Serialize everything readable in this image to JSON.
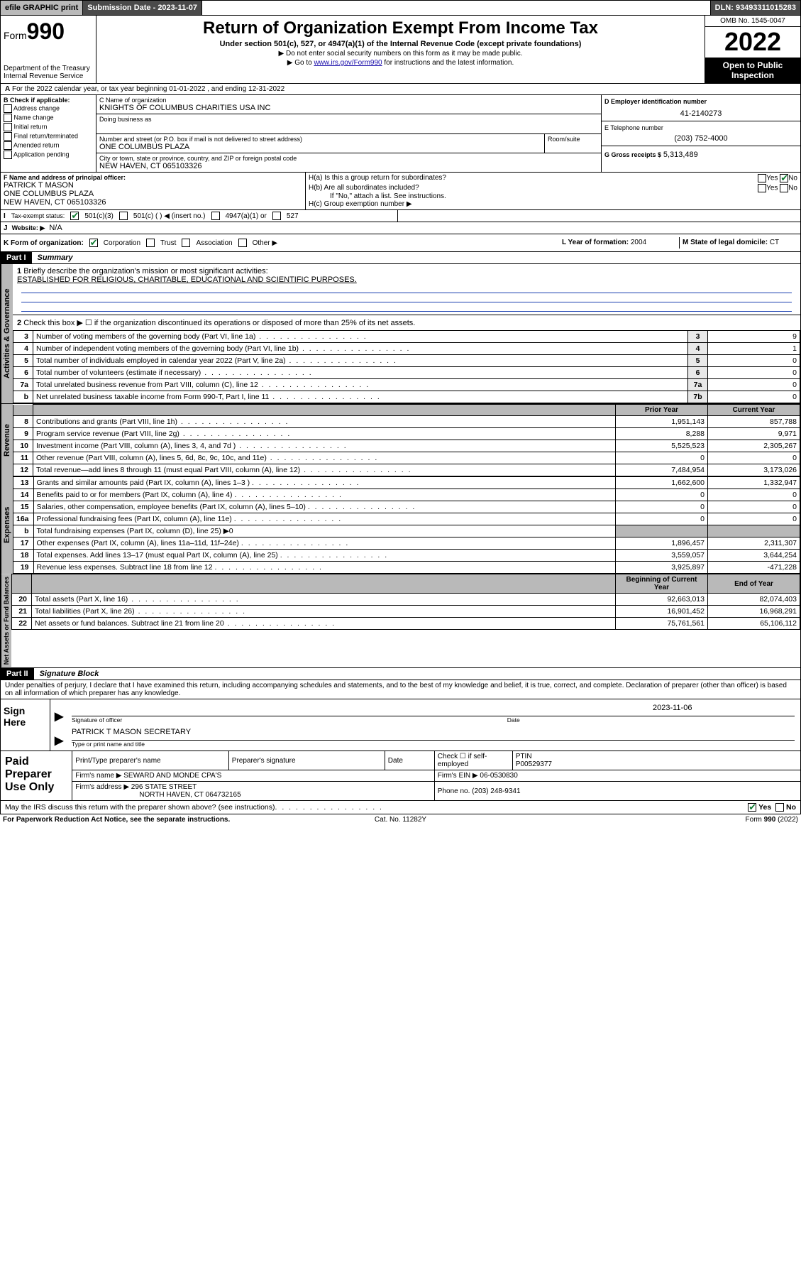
{
  "topbar": {
    "efile": "efile GRAPHIC print",
    "subdate_label": "Submission Date - 2023-11-07",
    "dln": "DLN: 93493311015283"
  },
  "header": {
    "form_prefix": "Form",
    "form_num": "990",
    "dept": "Department of the Treasury",
    "irs": "Internal Revenue Service",
    "title": "Return of Organization Exempt From Income Tax",
    "subtitle": "Under section 501(c), 527, or 4947(a)(1) of the Internal Revenue Code (except private foundations)",
    "note1": "▶ Do not enter social security numbers on this form as it may be made public.",
    "note2_pre": "▶ Go to ",
    "note2_link": "www.irs.gov/Form990",
    "note2_post": " for instructions and the latest information.",
    "omb": "OMB No. 1545-0047",
    "year": "2022",
    "inspect": "Open to Public Inspection"
  },
  "lineA": "For the 2022 calendar year, or tax year beginning 01-01-2022   , and ending 12-31-2022",
  "boxB": {
    "label": "B Check if applicable:",
    "items": [
      "Address change",
      "Name change",
      "Initial return",
      "Final return/terminated",
      "Amended return",
      "Application pending"
    ]
  },
  "boxC": {
    "label": "C Name of organization",
    "name": "KNIGHTS OF COLUMBUS CHARITIES USA INC",
    "dba_label": "Doing business as",
    "addr_label": "Number and street (or P.O. box if mail is not delivered to street address)",
    "room_label": "Room/suite",
    "addr": "ONE COLUMBUS PLAZA",
    "city_label": "City or town, state or province, country, and ZIP or foreign postal code",
    "city": "NEW HAVEN, CT  065103326"
  },
  "boxD": {
    "label": "D Employer identification number",
    "val": "41-2140273"
  },
  "boxE": {
    "label": "E Telephone number",
    "val": "(203) 752-4000"
  },
  "boxG": {
    "label": "G Gross receipts $",
    "val": "5,313,489"
  },
  "boxF": {
    "label": "F Name and address of principal officer:",
    "name": "PATRICK T MASON",
    "addr1": "ONE COLUMBUS PLAZA",
    "addr2": "NEW HAVEN, CT  065103326"
  },
  "boxH": {
    "a": "H(a)  Is this a group return for subordinates?",
    "b": "H(b)  Are all subordinates included?",
    "b_note": "If \"No,\" attach a list. See instructions.",
    "c": "H(c)  Group exemption number ▶",
    "yes": "Yes",
    "no": "No"
  },
  "boxI": {
    "label": "Tax-exempt status:",
    "o1": "501(c)(3)",
    "o2": "501(c) (   ) ◀ (insert no.)",
    "o3": "4947(a)(1) or",
    "o4": "527"
  },
  "boxJ": {
    "label": "Website: ▶",
    "val": "N/A"
  },
  "boxK": {
    "label": "K Form of organization:",
    "o1": "Corporation",
    "o2": "Trust",
    "o3": "Association",
    "o4": "Other ▶"
  },
  "boxL": {
    "label": "L Year of formation:",
    "val": "2004"
  },
  "boxM": {
    "label": "M State of legal domicile:",
    "val": "CT"
  },
  "part1": {
    "label": "Part I",
    "title": "Summary"
  },
  "summary": {
    "q1_label": "Briefly describe the organization's mission or most significant activities:",
    "q1_val": "ESTABLISHED FOR RELIGIOUS, CHARITABLE, EDUCATIONAL AND SCIENTIFIC PURPOSES.",
    "q2": "Check this box ▶ ☐  if the organization discontinued its operations or disposed of more than 25% of its net assets.",
    "lines_gov": [
      {
        "n": "3",
        "t": "Number of voting members of the governing body (Part VI, line 1a)",
        "box": "3",
        "v": "9"
      },
      {
        "n": "4",
        "t": "Number of independent voting members of the governing body (Part VI, line 1b)",
        "box": "4",
        "v": "1"
      },
      {
        "n": "5",
        "t": "Total number of individuals employed in calendar year 2022 (Part V, line 2a)",
        "box": "5",
        "v": "0"
      },
      {
        "n": "6",
        "t": "Total number of volunteers (estimate if necessary)",
        "box": "6",
        "v": "0"
      },
      {
        "n": "7a",
        "t": "Total unrelated business revenue from Part VIII, column (C), line 12",
        "box": "7a",
        "v": "0"
      },
      {
        "n": "b",
        "t": "Net unrelated business taxable income from Form 990-T, Part I, line 11",
        "box": "7b",
        "v": "0"
      }
    ],
    "col_prior": "Prior Year",
    "col_curr": "Current Year",
    "revenue": [
      {
        "n": "8",
        "t": "Contributions and grants (Part VIII, line 1h)",
        "p": "1,951,143",
        "c": "857,788"
      },
      {
        "n": "9",
        "t": "Program service revenue (Part VIII, line 2g)",
        "p": "8,288",
        "c": "9,971"
      },
      {
        "n": "10",
        "t": "Investment income (Part VIII, column (A), lines 3, 4, and 7d )",
        "p": "5,525,523",
        "c": "2,305,267"
      },
      {
        "n": "11",
        "t": "Other revenue (Part VIII, column (A), lines 5, 6d, 8c, 9c, 10c, and 11e)",
        "p": "0",
        "c": "0"
      },
      {
        "n": "12",
        "t": "Total revenue—add lines 8 through 11 (must equal Part VIII, column (A), line 12)",
        "p": "7,484,954",
        "c": "3,173,026"
      }
    ],
    "expenses": [
      {
        "n": "13",
        "t": "Grants and similar amounts paid (Part IX, column (A), lines 1–3 )",
        "p": "1,662,600",
        "c": "1,332,947"
      },
      {
        "n": "14",
        "t": "Benefits paid to or for members (Part IX, column (A), line 4)",
        "p": "0",
        "c": "0"
      },
      {
        "n": "15",
        "t": "Salaries, other compensation, employee benefits (Part IX, column (A), lines 5–10)",
        "p": "0",
        "c": "0"
      },
      {
        "n": "16a",
        "t": "Professional fundraising fees (Part IX, column (A), line 11e)",
        "p": "0",
        "c": "0"
      },
      {
        "n": "b",
        "t": "Total fundraising expenses (Part IX, column (D), line 25) ▶0",
        "p": "",
        "c": "",
        "shade": true
      },
      {
        "n": "17",
        "t": "Other expenses (Part IX, column (A), lines 11a–11d, 11f–24e)",
        "p": "1,896,457",
        "c": "2,311,307"
      },
      {
        "n": "18",
        "t": "Total expenses. Add lines 13–17 (must equal Part IX, column (A), line 25)",
        "p": "3,559,057",
        "c": "3,644,254"
      },
      {
        "n": "19",
        "t": "Revenue less expenses. Subtract line 18 from line 12",
        "p": "3,925,897",
        "c": "-471,228"
      }
    ],
    "col_boy": "Beginning of Current Year",
    "col_eoy": "End of Year",
    "netassets": [
      {
        "n": "20",
        "t": "Total assets (Part X, line 16)",
        "p": "92,663,013",
        "c": "82,074,403"
      },
      {
        "n": "21",
        "t": "Total liabilities (Part X, line 26)",
        "p": "16,901,452",
        "c": "16,968,291"
      },
      {
        "n": "22",
        "t": "Net assets or fund balances. Subtract line 21 from line 20",
        "p": "75,761,561",
        "c": "65,106,112"
      }
    ],
    "side_gov": "Activities & Governance",
    "side_rev": "Revenue",
    "side_exp": "Expenses",
    "side_net": "Net Assets or Fund Balances"
  },
  "part2": {
    "label": "Part II",
    "title": "Signature Block"
  },
  "sig": {
    "jurat": "Under penalties of perjury, I declare that I have examined this return, including accompanying schedules and statements, and to the best of my knowledge and belief, it is true, correct, and complete. Declaration of preparer (other than officer) is based on all information of which preparer has any knowledge.",
    "sign_here": "Sign Here",
    "date": "2023-11-06",
    "sig_label": "Signature of officer",
    "date_label": "Date",
    "name": "PATRICK T MASON  SECRETARY",
    "name_label": "Type or print name and title"
  },
  "prep": {
    "label": "Paid Preparer Use Only",
    "h1": "Print/Type preparer's name",
    "h2": "Preparer's signature",
    "h3": "Date",
    "check_label": "Check ☐ if self-employed",
    "ptin_label": "PTIN",
    "ptin": "P00529377",
    "firm_label": "Firm's name   ▶",
    "firm": "SEWARD AND MONDE CPA'S",
    "ein_label": "Firm's EIN ▶",
    "ein": "06-0530830",
    "addr_label": "Firm's address ▶",
    "addr1": "296 STATE STREET",
    "addr2": "NORTH HAVEN, CT  064732165",
    "phone_label": "Phone no.",
    "phone": "(203) 248-9341"
  },
  "discuss": {
    "q": "May the IRS discuss this return with the preparer shown above? (see instructions)",
    "yes": "Yes",
    "no": "No"
  },
  "footer": {
    "left": "For Paperwork Reduction Act Notice, see the separate instructions.",
    "mid": "Cat. No. 11282Y",
    "right": "Form 990 (2022)"
  }
}
